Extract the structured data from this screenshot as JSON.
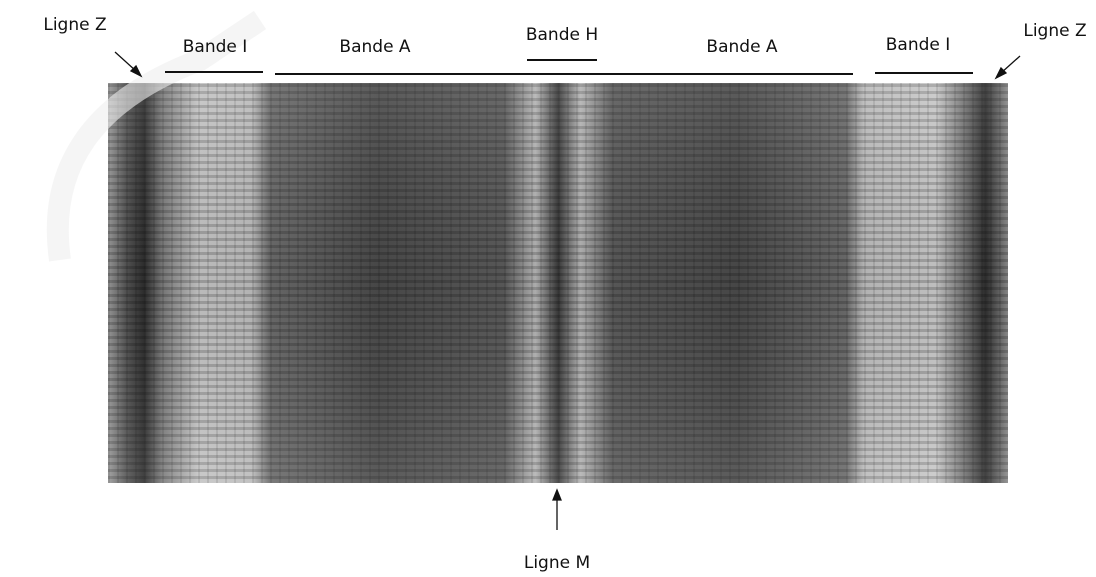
{
  "labels": {
    "z_left": "Ligne Z",
    "i_left": "Bande I",
    "a_left": "Bande A",
    "h": "Bande H",
    "a_right": "Bande A",
    "i_right": "Bande I",
    "z_right": "Ligne Z",
    "m": "Ligne M"
  }
}
